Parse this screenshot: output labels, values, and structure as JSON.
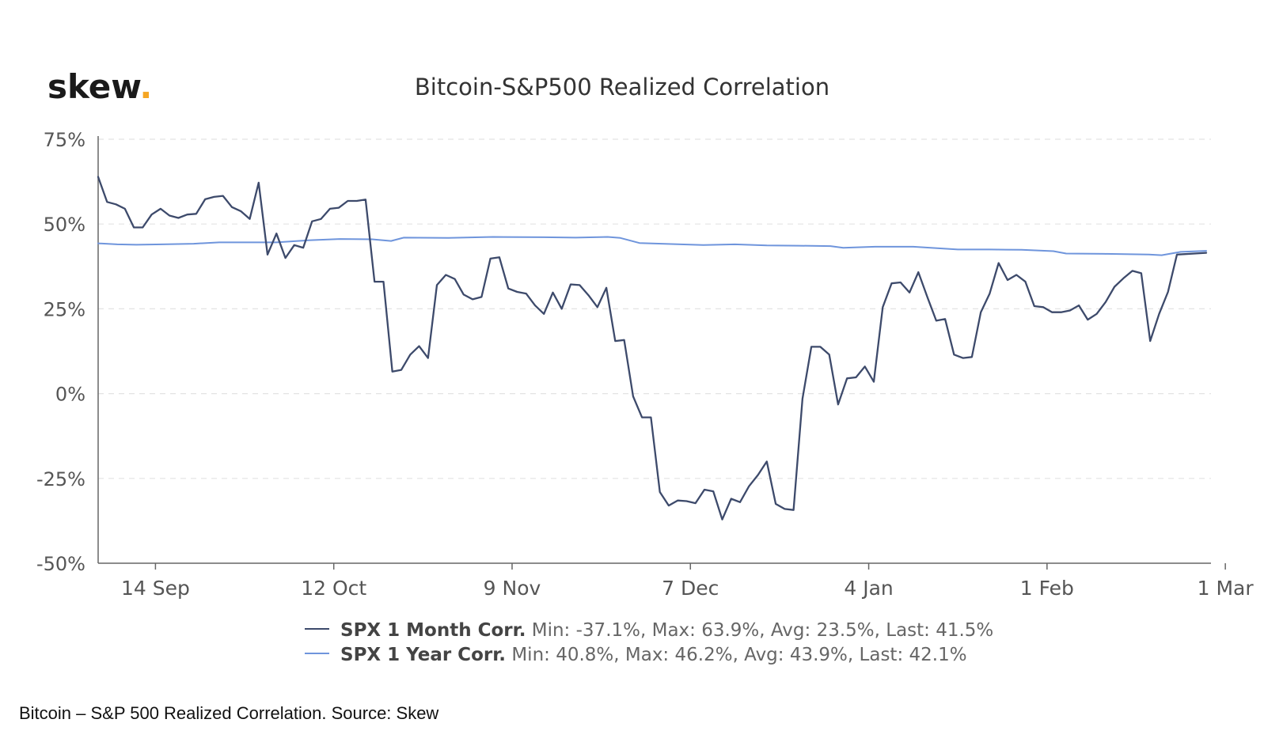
{
  "logo": {
    "text": "skew",
    "dot": ".",
    "dot_color": "#f5a623"
  },
  "caption": "Bitcoin – S&P 500 Realized Correlation. Source: Skew",
  "colors": {
    "month": "#3d4a6b",
    "year": "#6f95dc",
    "axis": "#666666",
    "grid": "#e3e3e3",
    "text": "#333333"
  },
  "chart_data": {
    "type": "line",
    "title": "Bitcoin-S&P500 Realized Correlation",
    "xlabel": "",
    "ylabel": "",
    "ylim": [
      -50,
      75
    ],
    "y_ticks": [
      75,
      50,
      25,
      0,
      -25,
      -50
    ],
    "y_tick_labels": [
      "75%",
      "50%",
      "25%",
      "0%",
      "-25%",
      "-50%"
    ],
    "x_range": [
      0,
      174
    ],
    "x_ticks": [
      {
        "day": 9,
        "label": "14 Sep"
      },
      {
        "day": 37,
        "label": "12 Oct"
      },
      {
        "day": 65,
        "label": "9 Nov"
      },
      {
        "day": 93,
        "label": "7 Dec"
      },
      {
        "day": 121,
        "label": "4 Jan"
      },
      {
        "day": 149,
        "label": "1 Feb"
      },
      {
        "day": 177,
        "label": "1 Mar"
      }
    ],
    "grid": true,
    "legend_position": "bottom",
    "series": [
      {
        "name": "SPX 1 Month Corr.",
        "stats": "Min: -37.1%, Max: 63.9%, Avg: 23.5%, Last: 41.5%",
        "color": "#3d4a6b",
        "points": [
          [
            0,
            63.9
          ],
          [
            1.4,
            56.5
          ],
          [
            2.8,
            55.8
          ],
          [
            4.2,
            54.5
          ],
          [
            5.6,
            49
          ],
          [
            7,
            49
          ],
          [
            8.4,
            52.8
          ],
          [
            9.8,
            54.5
          ],
          [
            11.2,
            52.5
          ],
          [
            12.6,
            51.8
          ],
          [
            14,
            52.8
          ],
          [
            15.4,
            53
          ],
          [
            16.8,
            57.3
          ],
          [
            18.2,
            58
          ],
          [
            19.6,
            58.3
          ],
          [
            21,
            55
          ],
          [
            22.4,
            53.8
          ],
          [
            23.8,
            51.5
          ],
          [
            25.2,
            62.2
          ],
          [
            26.6,
            41
          ],
          [
            28,
            47.2
          ],
          [
            29.4,
            40
          ],
          [
            30.8,
            43.8
          ],
          [
            32.2,
            43
          ],
          [
            33.6,
            50.8
          ],
          [
            35,
            51.5
          ],
          [
            36.4,
            54.5
          ],
          [
            37.8,
            54.8
          ],
          [
            39.2,
            56.8
          ],
          [
            40.6,
            56.8
          ],
          [
            42,
            57.2
          ],
          [
            43.4,
            33
          ],
          [
            44.8,
            33
          ],
          [
            46.2,
            6.5
          ],
          [
            47.6,
            7
          ],
          [
            49,
            11.5
          ],
          [
            50.4,
            14
          ],
          [
            51.8,
            10.5
          ],
          [
            53.2,
            32
          ],
          [
            54.6,
            35
          ],
          [
            56,
            33.8
          ],
          [
            57.4,
            29.2
          ],
          [
            58.8,
            27.8
          ],
          [
            60.2,
            28.5
          ],
          [
            61.6,
            39.8
          ],
          [
            63,
            40.2
          ],
          [
            64.4,
            31
          ],
          [
            65.8,
            30
          ],
          [
            67.2,
            29.5
          ],
          [
            68.6,
            26
          ],
          [
            70,
            23.5
          ],
          [
            71.4,
            29.8
          ],
          [
            72.8,
            25
          ],
          [
            74.2,
            32.2
          ],
          [
            75.6,
            32
          ],
          [
            77,
            29
          ],
          [
            78.4,
            25.5
          ],
          [
            79.8,
            31.2
          ],
          [
            81.2,
            15.5
          ],
          [
            82.6,
            15.8
          ],
          [
            84,
            -0.8
          ],
          [
            85.4,
            -7
          ],
          [
            86.8,
            -7
          ],
          [
            88.2,
            -29
          ],
          [
            89.6,
            -33
          ],
          [
            91,
            -31.5
          ],
          [
            92.4,
            -31.7
          ],
          [
            93.8,
            -32.3
          ],
          [
            95.2,
            -28.3
          ],
          [
            96.6,
            -28.8
          ],
          [
            98,
            -37.1
          ],
          [
            99.4,
            -31
          ],
          [
            100.8,
            -32
          ],
          [
            102.2,
            -27.3
          ],
          [
            103.6,
            -24
          ],
          [
            105,
            -20
          ],
          [
            106.4,
            -32.5
          ],
          [
            107.8,
            -34
          ],
          [
            109.2,
            -34.3
          ],
          [
            110.6,
            -1.5
          ],
          [
            112,
            13.8
          ],
          [
            113.4,
            13.8
          ],
          [
            114.8,
            11.5
          ],
          [
            116.2,
            -3.2
          ],
          [
            117.6,
            4.5
          ],
          [
            119,
            4.8
          ],
          [
            120.4,
            8
          ],
          [
            121.8,
            3.5
          ],
          [
            123.2,
            25.5
          ],
          [
            124.6,
            32.5
          ],
          [
            126,
            32.8
          ],
          [
            127.4,
            29.8
          ],
          [
            128.8,
            35.8
          ],
          [
            130.2,
            28.5
          ],
          [
            131.6,
            21.5
          ],
          [
            133,
            22
          ],
          [
            134.4,
            11.5
          ],
          [
            135.8,
            10.5
          ],
          [
            137.2,
            10.8
          ],
          [
            138.6,
            24
          ],
          [
            140,
            29.5
          ],
          [
            141.4,
            38.5
          ],
          [
            142.8,
            33.5
          ],
          [
            144.2,
            35
          ],
          [
            145.6,
            33
          ],
          [
            147,
            25.8
          ],
          [
            148.4,
            25.5
          ],
          [
            149.8,
            24
          ],
          [
            151.2,
            24
          ],
          [
            152.6,
            24.5
          ],
          [
            154,
            26
          ],
          [
            155.4,
            21.8
          ],
          [
            156.8,
            23.5
          ],
          [
            158.2,
            27
          ],
          [
            159.6,
            31.5
          ],
          [
            161,
            34
          ],
          [
            162.4,
            36.2
          ],
          [
            163.8,
            35.5
          ],
          [
            165.2,
            15.5
          ],
          [
            166.6,
            23.5
          ],
          [
            168,
            30
          ],
          [
            169.4,
            41
          ],
          [
            174,
            41.5
          ]
        ]
      },
      {
        "name": "SPX 1 Year Corr.",
        "stats": "Min: 40.8%, Max: 46.2%, Avg: 43.9%, Last: 42.1%",
        "color": "#6f95dc",
        "points": [
          [
            0,
            44.3
          ],
          [
            3,
            44
          ],
          [
            6,
            43.9
          ],
          [
            10,
            44
          ],
          [
            15,
            44.2
          ],
          [
            19,
            44.6
          ],
          [
            24,
            44.6
          ],
          [
            28,
            44.6
          ],
          [
            33,
            45.2
          ],
          [
            38,
            45.6
          ],
          [
            43,
            45.5
          ],
          [
            46,
            45
          ],
          [
            48,
            46
          ],
          [
            55,
            45.9
          ],
          [
            62,
            46.2
          ],
          [
            70,
            46.1
          ],
          [
            75,
            46
          ],
          [
            80,
            46.2
          ],
          [
            82,
            45.9
          ],
          [
            85,
            44.4
          ],
          [
            90,
            44.1
          ],
          [
            95,
            43.8
          ],
          [
            100,
            44
          ],
          [
            105,
            43.7
          ],
          [
            110,
            43.6
          ],
          [
            115,
            43.5
          ],
          [
            117,
            43
          ],
          [
            122,
            43.3
          ],
          [
            128,
            43.3
          ],
          [
            135,
            42.5
          ],
          [
            140,
            42.5
          ],
          [
            145,
            42.4
          ],
          [
            150,
            42
          ],
          [
            152,
            41.3
          ],
          [
            158,
            41.2
          ],
          [
            165,
            41
          ],
          [
            167,
            40.8
          ],
          [
            170,
            41.8
          ],
          [
            174,
            42.1
          ]
        ]
      }
    ]
  }
}
